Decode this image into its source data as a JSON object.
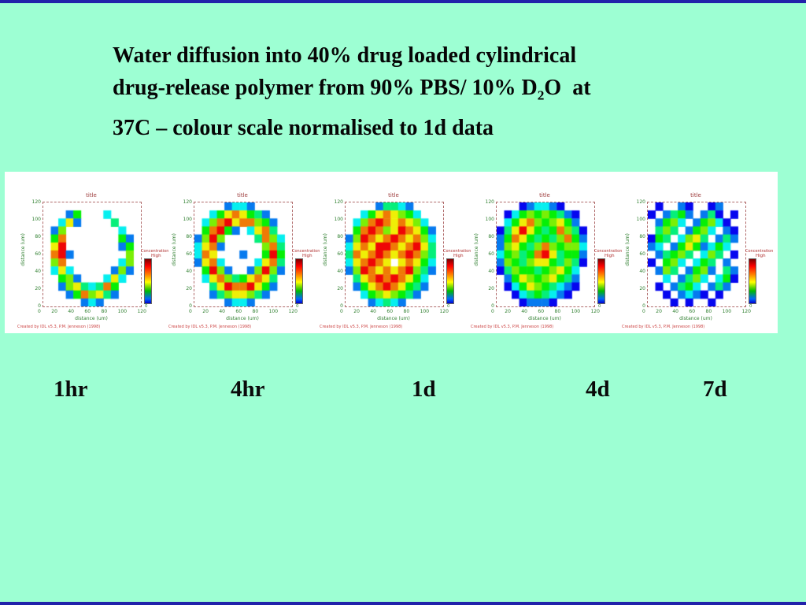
{
  "slide": {
    "background_color": "#9dffd3",
    "border_bar_color": "#2222aa",
    "title": {
      "line1": "Water diffusion into 40% drug loaded cylindrical",
      "line2_before_sub": "drug-release polymer from 90% PBS/ 10% D",
      "line2_sub": "2",
      "line2_after_sub": "O  at",
      "line3": "37C – colour scale normalised to 1d data"
    },
    "time_labels": [
      "1hr",
      "4hr",
      "1d",
      "4d",
      "7d"
    ]
  },
  "colormap": {
    "note": "grid value 0 = no water (white); 1 = low (blue) through 9 = high (red)",
    "low_color": "#0000ff",
    "mid_color": "#00bb00",
    "high_color": "#ff0000"
  },
  "chart_data": [
    {
      "type": "heatmap",
      "time_label": "1hr",
      "title": "title",
      "xlabel": "distance (um)",
      "ylabel": "distance (um)",
      "x_ticks": [
        0,
        20,
        40,
        60,
        80,
        100,
        120
      ],
      "y_ticks": [
        120,
        100,
        80,
        60,
        40,
        20,
        0
      ],
      "xlim": [
        0,
        130
      ],
      "ylim": [
        0,
        130
      ],
      "colorbar": {
        "label": "Concentration",
        "top": "High",
        "bottom": "0"
      },
      "caption": "Created by IDL v5.3, P.M. Jenneson (1998)",
      "pattern": "hollow ring of blobs, sparse top, hot spots left and bottom",
      "grid": [
        [
          0,
          0,
          0,
          0,
          0,
          0,
          0,
          0,
          0,
          0,
          0,
          0,
          0
        ],
        [
          0,
          0,
          0,
          2,
          5,
          0,
          0,
          0,
          3,
          0,
          0,
          0,
          0
        ],
        [
          0,
          0,
          3,
          7,
          2,
          0,
          0,
          0,
          0,
          4,
          0,
          0,
          0
        ],
        [
          0,
          2,
          6,
          0,
          0,
          0,
          0,
          0,
          0,
          0,
          3,
          0,
          0
        ],
        [
          0,
          5,
          8,
          0,
          0,
          0,
          0,
          0,
          0,
          0,
          5,
          2,
          0
        ],
        [
          0,
          7,
          9,
          0,
          0,
          0,
          0,
          0,
          0,
          0,
          2,
          5,
          0
        ],
        [
          0,
          8,
          9,
          2,
          0,
          0,
          0,
          0,
          0,
          0,
          0,
          6,
          0
        ],
        [
          0,
          6,
          8,
          0,
          0,
          0,
          0,
          0,
          0,
          0,
          3,
          6,
          0
        ],
        [
          0,
          3,
          7,
          3,
          0,
          0,
          0,
          0,
          0,
          2,
          6,
          2,
          0
        ],
        [
          0,
          0,
          5,
          6,
          2,
          0,
          0,
          0,
          3,
          7,
          3,
          0,
          0
        ],
        [
          0,
          0,
          2,
          6,
          7,
          4,
          3,
          4,
          8,
          5,
          0,
          0,
          0
        ],
        [
          0,
          0,
          0,
          2,
          5,
          8,
          6,
          7,
          4,
          2,
          0,
          0,
          0
        ],
        [
          0,
          0,
          0,
          0,
          0,
          2,
          3,
          2,
          0,
          0,
          0,
          0,
          0
        ]
      ]
    },
    {
      "type": "heatmap",
      "time_label": "4hr",
      "title": "title",
      "xlabel": "distance (um)",
      "ylabel": "distance (um)",
      "x_ticks": [
        0,
        20,
        40,
        60,
        80,
        100,
        120
      ],
      "y_ticks": [
        120,
        100,
        80,
        60,
        40,
        20,
        0
      ],
      "xlim": [
        0,
        130
      ],
      "ylim": [
        0,
        130
      ],
      "colorbar": {
        "label": "Concentration",
        "top": "High",
        "bottom": "0"
      },
      "caption": "Created by IDL v5.3, P.M. Jenneson (1998)",
      "pattern": "thick hot ring, white core remaining",
      "grid": [
        [
          0,
          0,
          0,
          0,
          2,
          3,
          3,
          2,
          0,
          0,
          0,
          0,
          0
        ],
        [
          0,
          0,
          3,
          5,
          7,
          8,
          7,
          5,
          4,
          2,
          0,
          0,
          0
        ],
        [
          0,
          3,
          6,
          8,
          9,
          7,
          8,
          8,
          6,
          5,
          2,
          0,
          0
        ],
        [
          0,
          5,
          8,
          9,
          5,
          2,
          0,
          3,
          7,
          8,
          4,
          0,
          0
        ],
        [
          2,
          6,
          9,
          6,
          0,
          0,
          0,
          0,
          4,
          8,
          6,
          3,
          0
        ],
        [
          3,
          7,
          8,
          2,
          0,
          0,
          0,
          0,
          0,
          6,
          8,
          4,
          0
        ],
        [
          3,
          8,
          7,
          0,
          0,
          0,
          2,
          0,
          0,
          5,
          9,
          5,
          0
        ],
        [
          2,
          7,
          8,
          3,
          0,
          0,
          0,
          0,
          3,
          7,
          8,
          4,
          0
        ],
        [
          0,
          5,
          9,
          6,
          2,
          0,
          0,
          2,
          6,
          9,
          6,
          2,
          0
        ],
        [
          0,
          3,
          7,
          8,
          6,
          4,
          5,
          7,
          8,
          7,
          4,
          0,
          0
        ],
        [
          0,
          0,
          4,
          7,
          9,
          8,
          8,
          9,
          7,
          5,
          2,
          0,
          0
        ],
        [
          0,
          0,
          2,
          4,
          6,
          7,
          7,
          6,
          4,
          2,
          0,
          0,
          0
        ],
        [
          0,
          0,
          0,
          0,
          2,
          3,
          3,
          2,
          0,
          0,
          0,
          0,
          0
        ]
      ]
    },
    {
      "type": "heatmap",
      "time_label": "1d",
      "title": "title",
      "xlabel": "distance (um)",
      "ylabel": "distance (um)",
      "x_ticks": [
        0,
        20,
        40,
        60,
        80,
        100,
        120
      ],
      "y_ticks": [
        120,
        100,
        80,
        60,
        40,
        20,
        0
      ],
      "xlim": [
        0,
        130
      ],
      "ylim": [
        0,
        130
      ],
      "colorbar": {
        "label": "Concentration",
        "top": "High",
        "bottom": "0"
      },
      "caption": "Created by IDL v5.3, P.M. Jenneson (1998)",
      "pattern": "fully saturated disc, red/orange dominant, few white holes",
      "grid": [
        [
          0,
          0,
          0,
          0,
          2,
          4,
          4,
          3,
          2,
          0,
          0,
          0,
          0
        ],
        [
          0,
          0,
          3,
          5,
          7,
          8,
          7,
          6,
          5,
          3,
          0,
          0,
          0
        ],
        [
          0,
          3,
          6,
          8,
          9,
          8,
          7,
          8,
          7,
          6,
          3,
          0,
          0
        ],
        [
          0,
          5,
          8,
          9,
          8,
          6,
          7,
          9,
          8,
          7,
          5,
          2,
          0
        ],
        [
          2,
          6,
          9,
          8,
          7,
          8,
          9,
          8,
          7,
          8,
          6,
          3,
          0
        ],
        [
          3,
          7,
          8,
          7,
          9,
          9,
          8,
          7,
          8,
          9,
          7,
          4,
          0
        ],
        [
          4,
          8,
          7,
          8,
          9,
          8,
          7,
          8,
          9,
          8,
          6,
          4,
          0
        ],
        [
          3,
          7,
          8,
          9,
          8,
          7,
          0,
          7,
          8,
          7,
          5,
          3,
          0
        ],
        [
          2,
          6,
          9,
          8,
          7,
          8,
          7,
          8,
          9,
          6,
          4,
          2,
          0
        ],
        [
          0,
          4,
          7,
          8,
          9,
          8,
          9,
          8,
          7,
          5,
          3,
          0,
          0
        ],
        [
          0,
          2,
          5,
          7,
          8,
          9,
          8,
          7,
          5,
          4,
          2,
          0,
          0
        ],
        [
          0,
          0,
          3,
          5,
          6,
          7,
          6,
          5,
          4,
          2,
          0,
          0,
          0
        ],
        [
          0,
          0,
          0,
          2,
          3,
          4,
          3,
          2,
          0,
          0,
          0,
          0,
          0
        ]
      ]
    },
    {
      "type": "heatmap",
      "time_label": "4d",
      "title": "title",
      "xlabel": "distance (um)",
      "ylabel": "distance (um)",
      "x_ticks": [
        0,
        20,
        40,
        60,
        80,
        100,
        120
      ],
      "y_ticks": [
        120,
        100,
        80,
        60,
        40,
        20,
        0
      ],
      "xlim": [
        0,
        130
      ],
      "ylim": [
        0,
        130
      ],
      "colorbar": {
        "label": "Concentration",
        "top": "High",
        "bottom": "0"
      },
      "caption": "Created by IDL v5.3, P.M. Jenneson (1998)",
      "pattern": "full disc, green dominant with red patches and blue rim",
      "grid": [
        [
          0,
          0,
          0,
          1,
          2,
          3,
          3,
          2,
          1,
          0,
          0,
          0,
          0
        ],
        [
          0,
          1,
          3,
          5,
          6,
          5,
          6,
          5,
          4,
          2,
          1,
          0,
          0
        ],
        [
          0,
          3,
          5,
          7,
          8,
          6,
          5,
          6,
          7,
          5,
          2,
          0,
          0
        ],
        [
          1,
          4,
          7,
          9,
          7,
          5,
          4,
          5,
          8,
          6,
          4,
          1,
          0
        ],
        [
          2,
          5,
          8,
          7,
          5,
          4,
          5,
          4,
          6,
          8,
          5,
          2,
          0
        ],
        [
          2,
          6,
          7,
          5,
          4,
          6,
          8,
          6,
          5,
          6,
          6,
          3,
          0
        ],
        [
          3,
          5,
          6,
          4,
          5,
          8,
          9,
          7,
          4,
          5,
          5,
          2,
          0
        ],
        [
          2,
          6,
          5,
          4,
          6,
          7,
          7,
          5,
          4,
          6,
          4,
          1,
          0
        ],
        [
          1,
          4,
          6,
          5,
          5,
          4,
          5,
          6,
          7,
          5,
          3,
          0,
          0
        ],
        [
          0,
          2,
          5,
          7,
          6,
          5,
          6,
          7,
          5,
          4,
          2,
          0,
          0
        ],
        [
          0,
          1,
          3,
          5,
          7,
          6,
          5,
          4,
          3,
          2,
          1,
          0,
          0
        ],
        [
          0,
          0,
          1,
          3,
          4,
          5,
          4,
          3,
          2,
          1,
          0,
          0,
          0
        ],
        [
          0,
          0,
          0,
          1,
          2,
          2,
          2,
          1,
          0,
          0,
          0,
          0,
          0
        ]
      ]
    },
    {
      "type": "heatmap",
      "time_label": "7d",
      "title": "title",
      "xlabel": "distance (um)",
      "ylabel": "distance (um)",
      "x_ticks": [
        0,
        20,
        40,
        60,
        80,
        100,
        120
      ],
      "y_ticks": [
        120,
        100,
        80,
        60,
        40,
        20,
        0
      ],
      "xlim": [
        0,
        130
      ],
      "ylim": [
        0,
        130
      ],
      "colorbar": {
        "label": "Concentration",
        "top": "High",
        "bottom": "0"
      },
      "caption": "Created by IDL v5.3, P.M. Jenneson (1998)",
      "pattern": "fragmented green/blue blobs with scattered blue spots and white gaps",
      "grid": [
        [
          0,
          1,
          0,
          0,
          2,
          1,
          0,
          0,
          1,
          2,
          0,
          0,
          0
        ],
        [
          1,
          0,
          2,
          4,
          5,
          2,
          0,
          2,
          4,
          1,
          0,
          1,
          0
        ],
        [
          0,
          2,
          5,
          6,
          3,
          0,
          2,
          5,
          6,
          3,
          1,
          0,
          0
        ],
        [
          0,
          4,
          6,
          4,
          0,
          2,
          5,
          6,
          3,
          0,
          2,
          1,
          0
        ],
        [
          1,
          5,
          4,
          0,
          3,
          6,
          7,
          4,
          0,
          2,
          4,
          2,
          0
        ],
        [
          2,
          3,
          0,
          2,
          5,
          7,
          5,
          2,
          3,
          5,
          3,
          0,
          0
        ],
        [
          0,
          2,
          4,
          5,
          6,
          4,
          0,
          3,
          6,
          4,
          0,
          1,
          0
        ],
        [
          1,
          0,
          5,
          6,
          3,
          0,
          3,
          5,
          4,
          0,
          2,
          0,
          0
        ],
        [
          0,
          2,
          6,
          4,
          0,
          2,
          5,
          6,
          2,
          0,
          4,
          2,
          0
        ],
        [
          0,
          0,
          3,
          0,
          2,
          4,
          6,
          3,
          0,
          3,
          5,
          1,
          0
        ],
        [
          0,
          1,
          0,
          2,
          4,
          5,
          3,
          0,
          2,
          4,
          2,
          0,
          0
        ],
        [
          0,
          0,
          1,
          0,
          2,
          3,
          2,
          1,
          0,
          1,
          0,
          0,
          0
        ],
        [
          0,
          0,
          0,
          1,
          0,
          1,
          0,
          0,
          1,
          0,
          0,
          0,
          0
        ]
      ]
    }
  ]
}
